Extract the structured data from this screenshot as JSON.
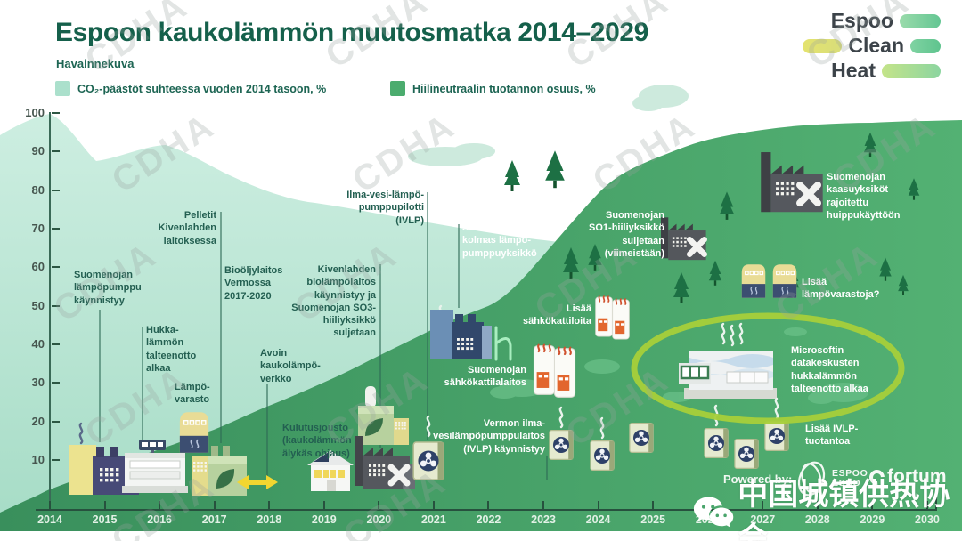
{
  "title": "Espoon kaukolämmön muutosmatka 2014–2029",
  "subtitle": "Havainnekuva",
  "legend": {
    "item1": {
      "label": "CO₂-päästöt suhteessa vuoden 2014 tasoon, %",
      "color": "#abe0cc"
    },
    "item2": {
      "label": "Hiilineutraalin tuotannon osuus, %",
      "color": "#4bac6e"
    }
  },
  "logo": {
    "word1": "Espoo",
    "word2": "Clean",
    "word3": "Heat"
  },
  "footer": {
    "powered_by": "Powered by:",
    "espoo_logo": "ESPOO\nESBO",
    "fortum_logo": "fortum"
  },
  "watermarks": {
    "repeat_text": "CDHA",
    "bottom_text": "中国城镇供热协会",
    "bottom_icon": "wechat-icon"
  },
  "decorations": {
    "h_outline": "h"
  },
  "chart_data": {
    "type": "area",
    "title": "Espoon kaukolämmön muutosmatka 2014–2029",
    "xlabel": "",
    "ylabel": "",
    "ylim": [
      0,
      100
    ],
    "grid": false,
    "legend_position": "top-left",
    "x": [
      2014,
      2015,
      2016,
      2017,
      2018,
      2019,
      2020,
      2021,
      2022,
      2023,
      2024,
      2025,
      2026,
      2027,
      2028,
      2029,
      2030
    ],
    "yticks": [
      100,
      90,
      80,
      70,
      60,
      50,
      40,
      30,
      20,
      10
    ],
    "series": [
      {
        "name": "CO₂-päästöt suhteessa vuoden 2014 tasoon, %",
        "color": "#b5e4d1",
        "values": [
          100,
          88,
          92,
          86,
          79,
          76,
          72,
          70,
          69,
          67,
          null,
          null,
          null,
          null,
          null,
          null,
          null
        ],
        "note": "area silhouette; hidden behind the green series after ~2023"
      },
      {
        "name": "Hiilineutraalin tuotannon osuus, %",
        "color": "#4aa96b",
        "values": [
          3,
          8,
          13,
          18,
          24,
          30,
          37,
          44,
          50,
          63,
          79,
          88,
          93,
          95,
          97,
          98,
          98
        ]
      }
    ],
    "annotations": [
      {
        "id": "suomenoja-lampopumppu",
        "text": "Suomenojan\nlämpöpumppu\nkäynnistyy"
      },
      {
        "id": "hukkalampo",
        "text": "Hukka-\nlämmön\ntalteenotto\nalkaa"
      },
      {
        "id": "lampovarasto",
        "text": "Lämpö-\nvarasto"
      },
      {
        "id": "pelletit",
        "text": "Pelletit\nKivenlahden\nlaitoksessa"
      },
      {
        "id": "biooljylaitos",
        "text": "Bioöljylaitos\nVermossa\n2017-2020"
      },
      {
        "id": "avoin-verkko",
        "text": "Avoin\nkaukolämpö-\nverkko"
      },
      {
        "id": "kivenlahti-so3",
        "text": "Kivenlahden\nbiolämpölaitos\nkäynnistyy ja\nSuomenojan SO3-\nhiiliyksikkö\nsuljetaan"
      },
      {
        "id": "ivlp-pilotti",
        "text": "Ilma-vesi-lämpö-\npumppupilotti\n(IVLP)"
      },
      {
        "id": "kulutusjousto",
        "text": "Kulutusjousto\n(kaukolämmön\nälykäs ohjaus)"
      },
      {
        "id": "kolmas-lampopumppu",
        "text": "Suomenojan\nkolmas lämpö-\npumppuyksikkö"
      },
      {
        "id": "so1-suljetaan",
        "text": "Suomenojan\nSO1-hiiliyksikkö\nsuljetaan\n(viimeistään)"
      },
      {
        "id": "lisaa-sahkokattiloita",
        "text": "Lisää\nsähkökattiloita"
      },
      {
        "id": "sahkokattilalaitos",
        "text": "Suomenojan\nsähkökattilalaitos"
      },
      {
        "id": "vermon-ivlp",
        "text": "Vermon ilma-\nvesilämpöpumppulaitos\n(IVLP) käynnistyy"
      },
      {
        "id": "kaasuyksikot",
        "text": "Suomenojan\nkaasuyksiköt\nrajoitettu\nhuippukäyttöön"
      },
      {
        "id": "lisaa-lampovarastoja",
        "text": "Lisää\nlämpövarastoja?"
      },
      {
        "id": "microsoft-datakeskukset",
        "text": "Microsoftin\ndatakeskusten\nhukkalämmön\ntalteenotto alkaa",
        "highlighted": true
      },
      {
        "id": "lisaa-ivlp",
        "text": "Lisää IVLP-\ntuotantoa"
      }
    ]
  }
}
